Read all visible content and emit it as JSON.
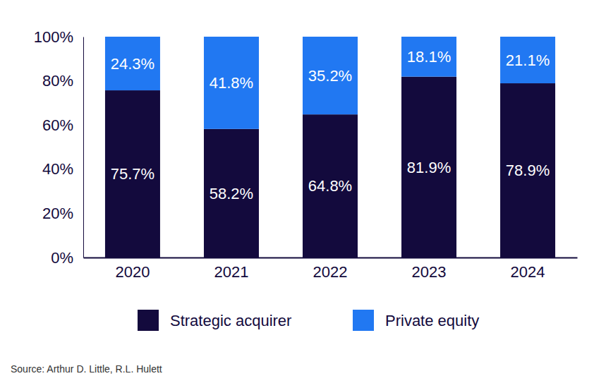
{
  "chart_data": {
    "type": "bar",
    "stacked": true,
    "data_labels": true,
    "categories": [
      "2020",
      "2021",
      "2022",
      "2023",
      "2024"
    ],
    "series": [
      {
        "name": "Strategic acquirer",
        "color": "#130a3d",
        "values": [
          75.7,
          58.2,
          64.8,
          81.9,
          78.9
        ],
        "value_labels": [
          "75.7%",
          "58.2%",
          "64.8%",
          "81.9%",
          "78.9%"
        ]
      },
      {
        "name": "Private equity",
        "color": "#2178f2",
        "values": [
          24.3,
          41.8,
          35.2,
          18.1,
          21.1
        ],
        "value_labels": [
          "24.3%",
          "41.8%",
          "35.2%",
          "18.1%",
          "21.1%"
        ]
      }
    ],
    "ylim": [
      0,
      100
    ],
    "yticks": [
      {
        "value": 0,
        "label": "0%"
      },
      {
        "value": 20,
        "label": "20%"
      },
      {
        "value": 40,
        "label": "40%"
      },
      {
        "value": 60,
        "label": "60%"
      },
      {
        "value": 80,
        "label": "80%"
      },
      {
        "value": 100,
        "label": "100%"
      }
    ],
    "grid": false,
    "legend": "bottom",
    "source": "Source: Arthur D. Little, R.L. Hulett"
  }
}
